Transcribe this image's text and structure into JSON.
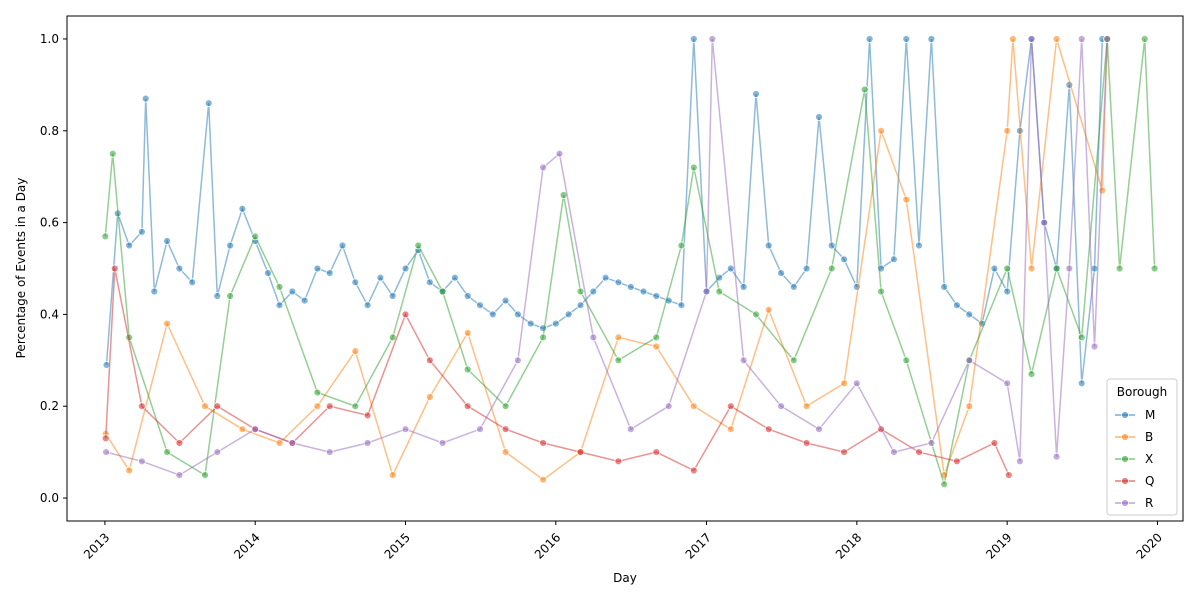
{
  "chart_data": {
    "type": "line",
    "title": "",
    "xlabel": "Day",
    "ylabel": "Percentage of Events in a Day",
    "x_range": [
      "2012-10-01",
      "2020-03-03"
    ],
    "ylim": [
      -0.05,
      1.05
    ],
    "x_ticks": [
      {
        "date": "2013-01-01",
        "label": "2013"
      },
      {
        "date": "2014-01-01",
        "label": "2014"
      },
      {
        "date": "2015-01-01",
        "label": "2015"
      },
      {
        "date": "2016-01-01",
        "label": "2016"
      },
      {
        "date": "2017-01-01",
        "label": "2017"
      },
      {
        "date": "2018-01-01",
        "label": "2018"
      },
      {
        "date": "2019-01-01",
        "label": "2019"
      },
      {
        "date": "2020-01-01",
        "label": "2020"
      }
    ],
    "y_ticks": [
      {
        "value": 0.0,
        "label": "0.0"
      },
      {
        "value": 0.2,
        "label": "0.2"
      },
      {
        "value": 0.4,
        "label": "0.4"
      },
      {
        "value": 0.6,
        "label": "0.6"
      },
      {
        "value": 0.8,
        "label": "0.8"
      },
      {
        "value": 1.0,
        "label": "1.0"
      }
    ],
    "grid": false,
    "markers": "circle",
    "legend": {
      "title": "Borough",
      "placement": "bottom-right"
    },
    "series": [
      {
        "name": "M",
        "color": "#1f77b4",
        "points": [
          [
            "2013-01-05",
            0.29
          ],
          [
            "2013-02-01",
            0.62
          ],
          [
            "2013-03-01",
            0.55
          ],
          [
            "2013-04-01",
            0.58
          ],
          [
            "2013-04-10",
            0.87
          ],
          [
            "2013-05-01",
            0.45
          ],
          [
            "2013-06-01",
            0.56
          ],
          [
            "2013-07-01",
            0.5
          ],
          [
            "2013-08-01",
            0.47
          ],
          [
            "2013-09-10",
            0.86
          ],
          [
            "2013-10-01",
            0.44
          ],
          [
            "2013-11-01",
            0.55
          ],
          [
            "2013-12-01",
            0.63
          ],
          [
            "2014-01-01",
            0.56
          ],
          [
            "2014-02-01",
            0.49
          ],
          [
            "2014-03-01",
            0.42
          ],
          [
            "2014-04-01",
            0.45
          ],
          [
            "2014-05-01",
            0.43
          ],
          [
            "2014-06-01",
            0.5
          ],
          [
            "2014-07-01",
            0.49
          ],
          [
            "2014-08-01",
            0.55
          ],
          [
            "2014-09-01",
            0.47
          ],
          [
            "2014-10-01",
            0.42
          ],
          [
            "2014-11-01",
            0.48
          ],
          [
            "2014-12-01",
            0.44
          ],
          [
            "2015-01-01",
            0.5
          ],
          [
            "2015-02-01",
            0.54
          ],
          [
            "2015-03-01",
            0.47
          ],
          [
            "2015-04-01",
            0.45
          ],
          [
            "2015-05-01",
            0.48
          ],
          [
            "2015-06-01",
            0.44
          ],
          [
            "2015-07-01",
            0.42
          ],
          [
            "2015-08-01",
            0.4
          ],
          [
            "2015-09-01",
            0.43
          ],
          [
            "2015-10-01",
            0.4
          ],
          [
            "2015-11-01",
            0.38
          ],
          [
            "2015-12-01",
            0.37
          ],
          [
            "2016-01-01",
            0.38
          ],
          [
            "2016-02-01",
            0.4
          ],
          [
            "2016-03-01",
            0.42
          ],
          [
            "2016-04-01",
            0.45
          ],
          [
            "2016-05-01",
            0.48
          ],
          [
            "2016-06-01",
            0.47
          ],
          [
            "2016-07-01",
            0.46
          ],
          [
            "2016-08-01",
            0.45
          ],
          [
            "2016-09-01",
            0.44
          ],
          [
            "2016-10-01",
            0.43
          ],
          [
            "2016-11-01",
            0.42
          ],
          [
            "2016-12-01",
            1.0
          ],
          [
            "2017-01-01",
            0.45
          ],
          [
            "2017-02-01",
            0.48
          ],
          [
            "2017-03-01",
            0.5
          ],
          [
            "2017-04-01",
            0.46
          ],
          [
            "2017-05-01",
            0.88
          ],
          [
            "2017-06-01",
            0.55
          ],
          [
            "2017-07-01",
            0.49
          ],
          [
            "2017-08-01",
            0.46
          ],
          [
            "2017-09-01",
            0.5
          ],
          [
            "2017-10-01",
            0.83
          ],
          [
            "2017-11-01",
            0.55
          ],
          [
            "2017-12-01",
            0.52
          ],
          [
            "2018-01-01",
            0.46
          ],
          [
            "2018-02-01",
            1.0
          ],
          [
            "2018-03-01",
            0.5
          ],
          [
            "2018-04-01",
            0.52
          ],
          [
            "2018-05-01",
            1.0
          ],
          [
            "2018-06-01",
            0.55
          ],
          [
            "2018-07-01",
            1.0
          ],
          [
            "2018-08-01",
            0.46
          ],
          [
            "2018-09-01",
            0.42
          ],
          [
            "2018-10-01",
            0.4
          ],
          [
            "2018-11-01",
            0.38
          ],
          [
            "2018-12-01",
            0.5
          ],
          [
            "2019-01-01",
            0.45
          ],
          [
            "2019-02-01",
            0.8
          ],
          [
            "2019-03-01",
            1.0
          ],
          [
            "2019-04-01",
            0.6
          ],
          [
            "2019-05-01",
            0.5
          ],
          [
            "2019-06-01",
            0.9
          ],
          [
            "2019-07-01",
            0.25
          ],
          [
            "2019-08-01",
            0.5
          ],
          [
            "2019-08-20",
            1.0
          ]
        ]
      },
      {
        "name": "B",
        "color": "#ff7f0e",
        "points": [
          [
            "2013-01-03",
            0.14
          ],
          [
            "2013-03-01",
            0.06
          ],
          [
            "2013-06-01",
            0.38
          ],
          [
            "2013-09-01",
            0.2
          ],
          [
            "2013-12-01",
            0.15
          ],
          [
            "2014-03-01",
            0.12
          ],
          [
            "2014-06-01",
            0.2
          ],
          [
            "2014-09-01",
            0.32
          ],
          [
            "2014-12-01",
            0.05
          ],
          [
            "2015-03-01",
            0.22
          ],
          [
            "2015-06-01",
            0.36
          ],
          [
            "2015-09-01",
            0.1
          ],
          [
            "2015-12-01",
            0.04
          ],
          [
            "2016-03-01",
            0.1
          ],
          [
            "2016-06-01",
            0.35
          ],
          [
            "2016-09-01",
            0.33
          ],
          [
            "2016-12-01",
            0.2
          ],
          [
            "2017-03-01",
            0.15
          ],
          [
            "2017-06-01",
            0.41
          ],
          [
            "2017-09-01",
            0.2
          ],
          [
            "2017-12-01",
            0.25
          ],
          [
            "2018-03-01",
            0.8
          ],
          [
            "2018-05-01",
            0.65
          ],
          [
            "2018-08-01",
            0.05
          ],
          [
            "2018-10-01",
            0.2
          ],
          [
            "2019-01-01",
            0.8
          ],
          [
            "2019-01-15",
            1.0
          ],
          [
            "2019-03-01",
            0.5
          ],
          [
            "2019-05-01",
            1.0
          ],
          [
            "2019-08-20",
            0.67
          ],
          [
            "2019-09-01",
            1.0
          ]
        ]
      },
      {
        "name": "X",
        "color": "#2ca02c",
        "points": [
          [
            "2013-01-02",
            0.57
          ],
          [
            "2013-01-20",
            0.75
          ],
          [
            "2013-03-01",
            0.35
          ],
          [
            "2013-06-01",
            0.1
          ],
          [
            "2013-09-01",
            0.05
          ],
          [
            "2013-11-01",
            0.44
          ],
          [
            "2014-01-01",
            0.57
          ],
          [
            "2014-03-01",
            0.46
          ],
          [
            "2014-06-01",
            0.23
          ],
          [
            "2014-09-01",
            0.2
          ],
          [
            "2014-12-01",
            0.35
          ],
          [
            "2015-02-01",
            0.55
          ],
          [
            "2015-04-01",
            0.45
          ],
          [
            "2015-06-01",
            0.28
          ],
          [
            "2015-09-01",
            0.2
          ],
          [
            "2015-12-01",
            0.35
          ],
          [
            "2016-01-20",
            0.66
          ],
          [
            "2016-03-01",
            0.45
          ],
          [
            "2016-06-01",
            0.3
          ],
          [
            "2016-09-01",
            0.35
          ],
          [
            "2016-11-01",
            0.55
          ],
          [
            "2016-12-01",
            0.72
          ],
          [
            "2017-02-01",
            0.45
          ],
          [
            "2017-05-01",
            0.4
          ],
          [
            "2017-08-01",
            0.3
          ],
          [
            "2017-11-01",
            0.5
          ],
          [
            "2018-01-20",
            0.89
          ],
          [
            "2018-03-01",
            0.45
          ],
          [
            "2018-05-01",
            0.3
          ],
          [
            "2018-08-01",
            0.03
          ],
          [
            "2018-10-01",
            0.3
          ],
          [
            "2019-01-01",
            0.5
          ],
          [
            "2019-03-01",
            0.27
          ],
          [
            "2019-05-01",
            0.5
          ],
          [
            "2019-07-01",
            0.35
          ],
          [
            "2019-09-01",
            1.0
          ],
          [
            "2019-10-01",
            0.5
          ],
          [
            "2019-12-01",
            1.0
          ],
          [
            "2019-12-25",
            0.5
          ]
        ]
      },
      {
        "name": "Q",
        "color": "#d62728",
        "points": [
          [
            "2013-01-03",
            0.13
          ],
          [
            "2013-01-25",
            0.5
          ],
          [
            "2013-04-01",
            0.2
          ],
          [
            "2013-07-01",
            0.12
          ],
          [
            "2013-10-01",
            0.2
          ],
          [
            "2014-01-01",
            0.15
          ],
          [
            "2014-04-01",
            0.12
          ],
          [
            "2014-07-01",
            0.2
          ],
          [
            "2014-10-01",
            0.18
          ],
          [
            "2015-01-01",
            0.4
          ],
          [
            "2015-03-01",
            0.3
          ],
          [
            "2015-06-01",
            0.2
          ],
          [
            "2015-09-01",
            0.15
          ],
          [
            "2015-12-01",
            0.12
          ],
          [
            "2016-03-01",
            0.1
          ],
          [
            "2016-06-01",
            0.08
          ],
          [
            "2016-09-01",
            0.1
          ],
          [
            "2016-12-01",
            0.06
          ],
          [
            "2017-03-01",
            0.2
          ],
          [
            "2017-06-01",
            0.15
          ],
          [
            "2017-09-01",
            0.12
          ],
          [
            "2017-12-01",
            0.1
          ],
          [
            "2018-03-01",
            0.15
          ],
          [
            "2018-06-01",
            0.1
          ],
          [
            "2018-09-01",
            0.08
          ],
          [
            "2018-12-01",
            0.12
          ],
          [
            "2019-01-05",
            0.05
          ]
        ]
      },
      {
        "name": "R",
        "color": "#9467bd",
        "points": [
          [
            "2013-01-04",
            0.1
          ],
          [
            "2013-04-01",
            0.08
          ],
          [
            "2013-07-01",
            0.05
          ],
          [
            "2013-10-01",
            0.1
          ],
          [
            "2014-01-01",
            0.15
          ],
          [
            "2014-04-01",
            0.12
          ],
          [
            "2014-07-01",
            0.1
          ],
          [
            "2014-10-01",
            0.12
          ],
          [
            "2015-01-01",
            0.15
          ],
          [
            "2015-04-01",
            0.12
          ],
          [
            "2015-07-01",
            0.15
          ],
          [
            "2015-10-01",
            0.3
          ],
          [
            "2015-12-01",
            0.72
          ],
          [
            "2016-01-10",
            0.75
          ],
          [
            "2016-04-01",
            0.35
          ],
          [
            "2016-07-01",
            0.15
          ],
          [
            "2016-10-01",
            0.2
          ],
          [
            "2017-01-01",
            0.45
          ],
          [
            "2017-01-15",
            1.0
          ],
          [
            "2017-04-01",
            0.3
          ],
          [
            "2017-07-01",
            0.2
          ],
          [
            "2017-10-01",
            0.15
          ],
          [
            "2018-01-01",
            0.25
          ],
          [
            "2018-04-01",
            0.1
          ],
          [
            "2018-07-01",
            0.12
          ],
          [
            "2018-10-01",
            0.3
          ],
          [
            "2019-01-01",
            0.25
          ],
          [
            "2019-02-01",
            0.08
          ],
          [
            "2019-03-01",
            1.0
          ],
          [
            "2019-04-01",
            0.6
          ],
          [
            "2019-05-01",
            0.09
          ],
          [
            "2019-06-01",
            0.5
          ],
          [
            "2019-07-01",
            1.0
          ],
          [
            "2019-08-01",
            0.33
          ],
          [
            "2019-09-01",
            1.0
          ]
        ]
      }
    ]
  }
}
